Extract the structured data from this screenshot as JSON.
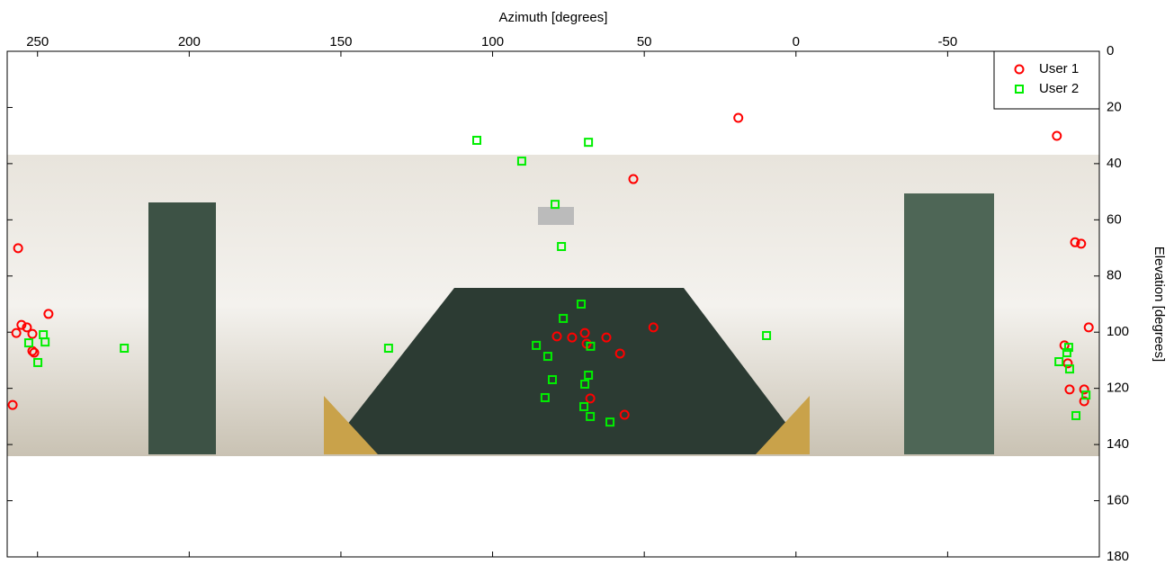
{
  "chart_data": {
    "type": "scatter",
    "x_label": "Azimuth [degrees]",
    "y_label": "Elevation [degrees]",
    "xlim": [
      260,
      -100
    ],
    "ylim": [
      0,
      180
    ],
    "xticks": [
      250,
      200,
      150,
      100,
      50,
      0,
      -50
    ],
    "yticks": [
      0,
      20,
      40,
      60,
      80,
      100,
      120,
      140,
      160,
      180
    ],
    "legend": "upper right",
    "series": [
      {
        "name": "User 1",
        "color": "#ff0000",
        "marker": "circle",
        "x": [
          19,
          -86,
          53.6,
          256.4,
          -92,
          -94,
          246.4,
          255.3,
          253.5,
          257,
          251.7,
          251.7,
          251.1,
          258.2,
          47,
          78.8,
          73.8,
          69.6,
          69,
          62.5,
          58,
          67.8,
          56.5,
          -96.5,
          -88.5,
          -89.6,
          -90.2,
          -95,
          -95
        ],
        "y": [
          23.7,
          30.1,
          45.5,
          70.1,
          68,
          68.5,
          93.5,
          97.4,
          98.3,
          100.3,
          100.6,
          106.7,
          107.3,
          125.9,
          98.3,
          101.5,
          101.9,
          100.3,
          104.1,
          101.9,
          107.6,
          123.6,
          129.4,
          98.3,
          104.7,
          111.1,
          120.4,
          120.4,
          124.6
        ]
      },
      {
        "name": "User 2",
        "color": "#00ee00",
        "marker": "square",
        "x": [
          105.2,
          68.4,
          90.4,
          79.4,
          77.3,
          70.8,
          76.7,
          248.1,
          252.9,
          247.5,
          249.9,
          221.4,
          134.3,
          9.7,
          85.6,
          67.7,
          81.8,
          80.3,
          68.4,
          69.6,
          82.7,
          69.9,
          67.8,
          61.3,
          -86.7,
          -89.9,
          -89.3,
          -90.2,
          -95.6,
          -92.3
        ],
        "y": [
          31.7,
          32.4,
          39.1,
          54.5,
          69.5,
          90,
          95.1,
          100.9,
          103.8,
          103.5,
          110.8,
          105.7,
          105.7,
          101.2,
          104.7,
          105,
          108.6,
          116.9,
          115.3,
          118.5,
          123.3,
          126.5,
          130,
          132,
          110.5,
          105.4,
          107.3,
          113.1,
          122.4,
          129.7
        ]
      }
    ]
  }
}
